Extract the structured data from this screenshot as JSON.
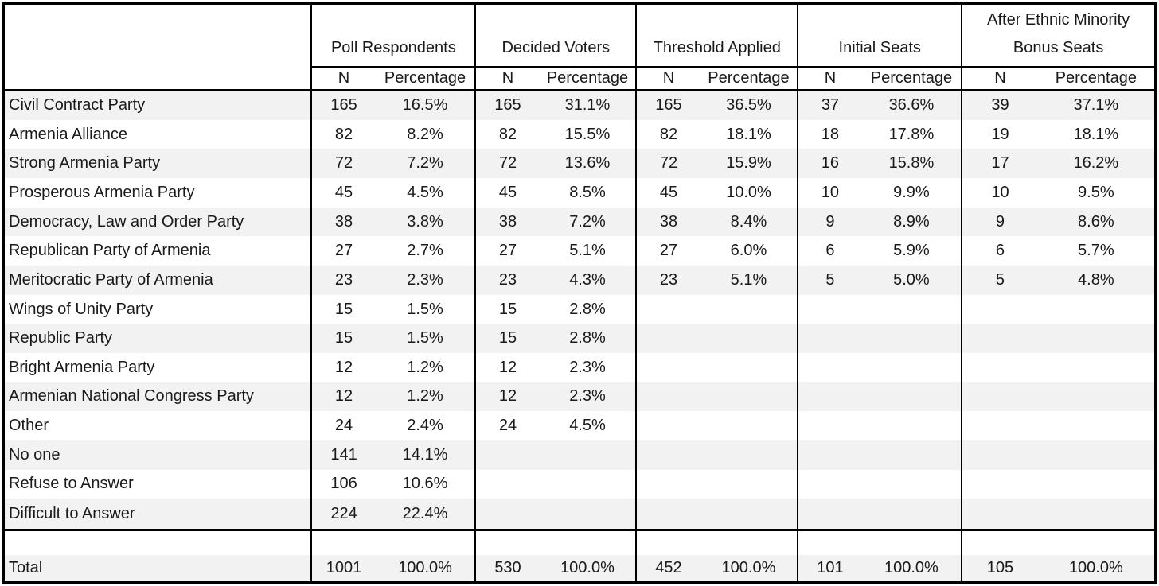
{
  "table": {
    "corner_label": "",
    "groups": [
      {
        "label": "Poll Respondents"
      },
      {
        "label": "Decided Voters"
      },
      {
        "label": "Threshold Applied"
      },
      {
        "label": "Initial Seats"
      },
      {
        "label": "After Ethnic Minority Bonus Seats"
      }
    ],
    "subheader_n": "N",
    "subheader_pct": "Percentage",
    "rows": [
      {
        "party": "Civil Contract Party",
        "cells": [
          "165",
          "16.5%",
          "165",
          "31.1%",
          "165",
          "36.5%",
          "37",
          "36.6%",
          "39",
          "37.1%"
        ]
      },
      {
        "party": "Armenia Alliance",
        "cells": [
          "82",
          "8.2%",
          "82",
          "15.5%",
          "82",
          "18.1%",
          "18",
          "17.8%",
          "19",
          "18.1%"
        ]
      },
      {
        "party": "Strong Armenia Party",
        "cells": [
          "72",
          "7.2%",
          "72",
          "13.6%",
          "72",
          "15.9%",
          "16",
          "15.8%",
          "17",
          "16.2%"
        ]
      },
      {
        "party": "Prosperous Armenia Party",
        "cells": [
          "45",
          "4.5%",
          "45",
          "8.5%",
          "45",
          "10.0%",
          "10",
          "9.9%",
          "10",
          "9.5%"
        ]
      },
      {
        "party": "Democracy, Law and Order Party",
        "cells": [
          "38",
          "3.8%",
          "38",
          "7.2%",
          "38",
          "8.4%",
          "9",
          "8.9%",
          "9",
          "8.6%"
        ]
      },
      {
        "party": "Republican Party of Armenia",
        "cells": [
          "27",
          "2.7%",
          "27",
          "5.1%",
          "27",
          "6.0%",
          "6",
          "5.9%",
          "6",
          "5.7%"
        ]
      },
      {
        "party": "Meritocratic Party of Armenia",
        "cells": [
          "23",
          "2.3%",
          "23",
          "4.3%",
          "23",
          "5.1%",
          "5",
          "5.0%",
          "5",
          "4.8%"
        ]
      },
      {
        "party": "Wings of Unity Party",
        "cells": [
          "15",
          "1.5%",
          "15",
          "2.8%",
          "",
          "",
          "",
          "",
          "",
          ""
        ]
      },
      {
        "party": "Republic Party",
        "cells": [
          "15",
          "1.5%",
          "15",
          "2.8%",
          "",
          "",
          "",
          "",
          "",
          ""
        ]
      },
      {
        "party": "Bright Armenia Party",
        "cells": [
          "12",
          "1.2%",
          "12",
          "2.3%",
          "",
          "",
          "",
          "",
          "",
          ""
        ]
      },
      {
        "party": "Armenian National Congress Party",
        "cells": [
          "12",
          "1.2%",
          "12",
          "2.3%",
          "",
          "",
          "",
          "",
          "",
          ""
        ]
      },
      {
        "party": "Other",
        "cells": [
          "24",
          "2.4%",
          "24",
          "4.5%",
          "",
          "",
          "",
          "",
          "",
          ""
        ]
      },
      {
        "party": "No one",
        "cells": [
          "141",
          "14.1%",
          "",
          "",
          "",
          "",
          "",
          "",
          "",
          ""
        ]
      },
      {
        "party": "Refuse to Answer",
        "cells": [
          "106",
          "10.6%",
          "",
          "",
          "",
          "",
          "",
          "",
          "",
          ""
        ]
      },
      {
        "party": "Difficult to Answer",
        "cells": [
          "224",
          "22.4%",
          "",
          "",
          "",
          "",
          "",
          "",
          "",
          ""
        ]
      }
    ],
    "total": {
      "party": "Total",
      "cells": [
        "1001",
        "100.0%",
        "530",
        "100.0%",
        "452",
        "100.0%",
        "101",
        "100.0%",
        "105",
        "100.0%"
      ]
    }
  },
  "colors": {
    "stripe": "#f2f2f2",
    "border": "#000000",
    "background": "#ffffff",
    "text": "#1a1a1a"
  },
  "chart_data": {
    "type": "table",
    "title": "",
    "row_header": "",
    "column_groups": [
      "Poll Respondents",
      "Decided Voters",
      "Threshold Applied",
      "Initial Seats",
      "After Ethnic Minority Bonus Seats"
    ],
    "subcolumns_per_group": [
      "N",
      "Percentage"
    ],
    "rows": [
      [
        "Civil Contract Party",
        165,
        "16.5%",
        165,
        "31.1%",
        165,
        "36.5%",
        37,
        "36.6%",
        39,
        "37.1%"
      ],
      [
        "Armenia Alliance",
        82,
        "8.2%",
        82,
        "15.5%",
        82,
        "18.1%",
        18,
        "17.8%",
        19,
        "18.1%"
      ],
      [
        "Strong Armenia Party",
        72,
        "7.2%",
        72,
        "13.6%",
        72,
        "15.9%",
        16,
        "15.8%",
        17,
        "16.2%"
      ],
      [
        "Prosperous Armenia Party",
        45,
        "4.5%",
        45,
        "8.5%",
        45,
        "10.0%",
        10,
        "9.9%",
        10,
        "9.5%"
      ],
      [
        "Democracy, Law and Order Party",
        38,
        "3.8%",
        38,
        "7.2%",
        38,
        "8.4%",
        9,
        "8.9%",
        9,
        "8.6%"
      ],
      [
        "Republican Party of Armenia",
        27,
        "2.7%",
        27,
        "5.1%",
        27,
        "6.0%",
        6,
        "5.9%",
        6,
        "5.7%"
      ],
      [
        "Meritocratic Party of Armenia",
        23,
        "2.3%",
        23,
        "4.3%",
        23,
        "5.1%",
        5,
        "5.0%",
        5,
        "4.8%"
      ],
      [
        "Wings of Unity Party",
        15,
        "1.5%",
        15,
        "2.8%",
        null,
        null,
        null,
        null,
        null,
        null
      ],
      [
        "Republic Party",
        15,
        "1.5%",
        15,
        "2.8%",
        null,
        null,
        null,
        null,
        null,
        null
      ],
      [
        "Bright Armenia Party",
        12,
        "1.2%",
        12,
        "2.3%",
        null,
        null,
        null,
        null,
        null,
        null
      ],
      [
        "Armenian National Congress Party",
        12,
        "1.2%",
        12,
        "2.3%",
        null,
        null,
        null,
        null,
        null,
        null
      ],
      [
        "Other",
        24,
        "2.4%",
        24,
        "4.5%",
        null,
        null,
        null,
        null,
        null,
        null
      ],
      [
        "No one",
        141,
        "14.1%",
        null,
        null,
        null,
        null,
        null,
        null,
        null,
        null
      ],
      [
        "Refuse to Answer",
        106,
        "10.6%",
        null,
        null,
        null,
        null,
        null,
        null,
        null,
        null
      ],
      [
        "Difficult to Answer",
        224,
        "22.4%",
        null,
        null,
        null,
        null,
        null,
        null,
        null,
        null
      ],
      [
        "Total",
        1001,
        "100.0%",
        530,
        "100.0%",
        452,
        "100.0%",
        101,
        "100.0%",
        105,
        "100.0%"
      ]
    ]
  }
}
